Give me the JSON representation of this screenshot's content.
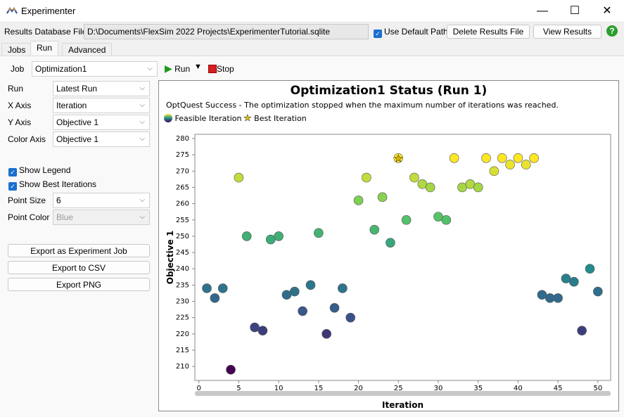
{
  "window": {
    "title": "Experimenter",
    "minimize": "—",
    "maximize": "☐",
    "close": "✕"
  },
  "toolbar": {
    "db_label": "Results Database File",
    "db_path": "D:\\Documents\\FlexSim 2022 Projects\\ExperimenterTutorial.sqlite",
    "use_default_path": "Use Default Path",
    "delete_results": "Delete Results File",
    "view_results": "View Results",
    "help": "?"
  },
  "tabs": [
    {
      "label": "Jobs"
    },
    {
      "label": "Run"
    },
    {
      "label": "Advanced"
    }
  ],
  "run_bar": {
    "job_label": "Job",
    "job_value": "Optimization1",
    "run": "Run",
    "stop": "Stop"
  },
  "settings": {
    "run_label": "Run",
    "run_value": "Latest Run",
    "xaxis_label": "X Axis",
    "xaxis_value": "Iteration",
    "yaxis_label": "Y Axis",
    "yaxis_value": "Objective 1",
    "color_label": "Color Axis",
    "color_value": "Objective 1",
    "show_legend": "Show Legend",
    "show_best": "Show Best Iterations",
    "point_size_label": "Point Size",
    "point_size_value": "6",
    "point_color_label": "Point Color",
    "point_color_value": "Blue"
  },
  "exports": {
    "job": "Export as Experiment Job",
    "csv": "Export to CSV",
    "png": "Export PNG"
  },
  "chart_data": {
    "type": "scatter",
    "title": "Optimization1 Status (Run 1)",
    "subtitle": "OptQuest Success - The optimization stopped when the maximum number of iterations was reached.",
    "legend": [
      "Feasible Iteration",
      "Best Iteration"
    ],
    "xlabel": "Iteration",
    "ylabel": "Objective 1",
    "xlim": [
      -0.5,
      51.6
    ],
    "ylim": [
      205.7,
      281.3
    ],
    "xticks": [
      0,
      5,
      10,
      15,
      20,
      25,
      30,
      35,
      40,
      45,
      50
    ],
    "yticks": [
      210,
      215,
      220,
      225,
      230,
      235,
      240,
      245,
      250,
      255,
      260,
      265,
      270,
      275,
      280
    ],
    "x": [
      1,
      2,
      3,
      4,
      5,
      6,
      7,
      8,
      9,
      10,
      11,
      12,
      13,
      14,
      15,
      16,
      17,
      18,
      19,
      20,
      21,
      22,
      23,
      24,
      25,
      26,
      27,
      28,
      29,
      30,
      31,
      32,
      33,
      34,
      35,
      36,
      37,
      38,
      39,
      40,
      41,
      42,
      43,
      44,
      45,
      46,
      47,
      48,
      49,
      50
    ],
    "y": [
      234,
      231,
      234,
      209,
      268,
      250,
      222,
      221,
      249,
      250,
      232,
      233,
      227,
      235,
      251,
      220,
      228,
      234,
      225,
      261,
      268,
      252,
      262,
      248,
      274,
      255,
      268,
      266,
      265,
      256,
      255,
      274,
      265,
      266,
      265,
      274,
      270,
      274,
      272,
      274,
      272,
      274,
      232,
      231,
      231,
      237,
      236,
      221,
      240,
      233
    ],
    "best": [
      25
    ],
    "grid": false
  }
}
